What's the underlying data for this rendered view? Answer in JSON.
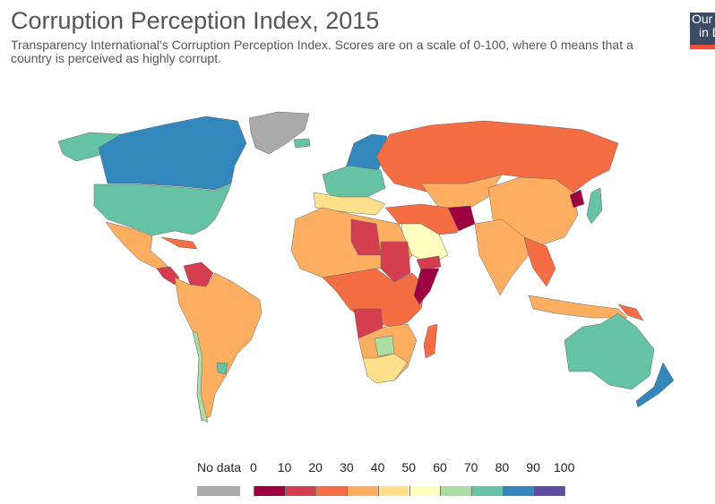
{
  "header": {
    "title": "Corruption Perception Index, 2015",
    "subtitle": "Transparency International's Corruption Perception Index. Scores are on a scale of 0-100, where 0 means that a country is perceived as highly corrupt."
  },
  "logo": {
    "line1": "Our World",
    "line2": "in Data",
    "text_visible": "Our in I"
  },
  "legend": {
    "no_data_label": "No data",
    "no_data_color": "#aaaaaa",
    "ticks": [
      "0",
      "10",
      "20",
      "30",
      "40",
      "50",
      "60",
      "70",
      "80",
      "90",
      "100"
    ],
    "bins": [
      {
        "range": "0-10",
        "color": "#9e0142"
      },
      {
        "range": "10-20",
        "color": "#d53e4f"
      },
      {
        "range": "20-30",
        "color": "#f46d43"
      },
      {
        "range": "30-40",
        "color": "#fdae61"
      },
      {
        "range": "40-50",
        "color": "#fee08b"
      },
      {
        "range": "50-60",
        "color": "#ffffbf"
      },
      {
        "range": "60-70",
        "color": "#abdda4"
      },
      {
        "range": "70-80",
        "color": "#66c2a5"
      },
      {
        "range": "80-90",
        "color": "#3288bd"
      },
      {
        "range": "90-100",
        "color": "#5e4fa2"
      }
    ]
  }
}
